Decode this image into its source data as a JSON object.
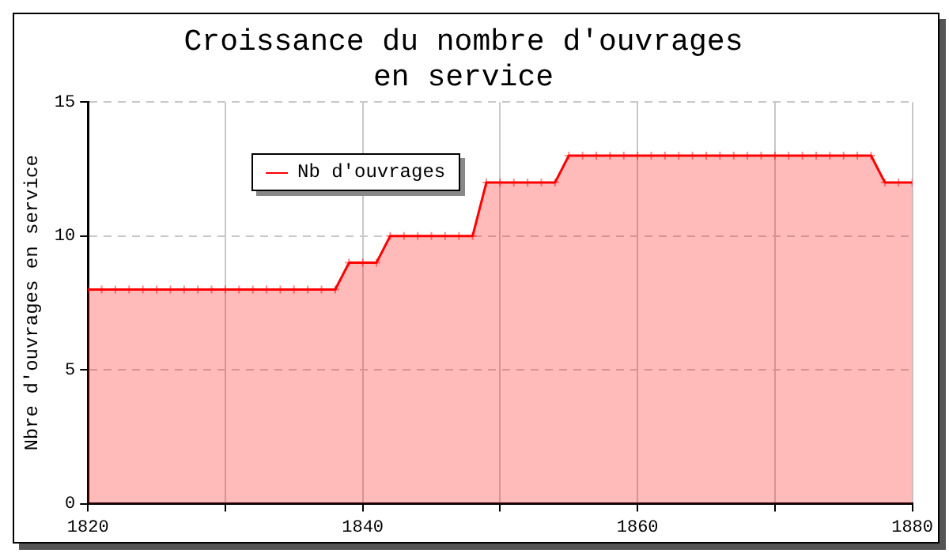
{
  "chart_data": {
    "type": "area",
    "title": "Croissance du nombre d'ouvrages\nen service",
    "ylabel": "Nbre d'ouvrages en service",
    "x": [
      1820,
      1821,
      1822,
      1823,
      1824,
      1825,
      1826,
      1827,
      1828,
      1829,
      1830,
      1831,
      1832,
      1833,
      1834,
      1835,
      1836,
      1837,
      1838,
      1839,
      1840,
      1841,
      1842,
      1843,
      1844,
      1845,
      1846,
      1847,
      1848,
      1849,
      1850,
      1851,
      1852,
      1853,
      1854,
      1855,
      1856,
      1857,
      1858,
      1859,
      1860,
      1861,
      1862,
      1863,
      1864,
      1865,
      1866,
      1867,
      1868,
      1869,
      1870,
      1871,
      1872,
      1873,
      1874,
      1875,
      1876,
      1877,
      1878,
      1879,
      1880
    ],
    "series": [
      {
        "name": "Nb d'ouvrages",
        "color": "#ff0000",
        "values": [
          8,
          8,
          8,
          8,
          8,
          8,
          8,
          8,
          8,
          8,
          8,
          8,
          8,
          8,
          8,
          8,
          8,
          8,
          8,
          9,
          9,
          9,
          10,
          10,
          10,
          10,
          10,
          10,
          10,
          12,
          12,
          12,
          12,
          12,
          12,
          13,
          13,
          13,
          13,
          13,
          13,
          13,
          13,
          13,
          13,
          13,
          13,
          13,
          13,
          13,
          13,
          13,
          13,
          13,
          13,
          13,
          13,
          13,
          12,
          12,
          12
        ]
      }
    ],
    "xlim": [
      1820,
      1880
    ],
    "xticks": [
      1820,
      {
        "value": 1830,
        "label": null
      },
      1840,
      {
        "value": 1850,
        "label": null
      },
      1860,
      {
        "value": 1870,
        "label": null
      },
      1880
    ],
    "ylim": [
      0,
      15
    ],
    "yticks": [
      0,
      5,
      10,
      15
    ],
    "grid": true,
    "legend": "top left",
    "marker": "cross",
    "line_style": "solid"
  }
}
